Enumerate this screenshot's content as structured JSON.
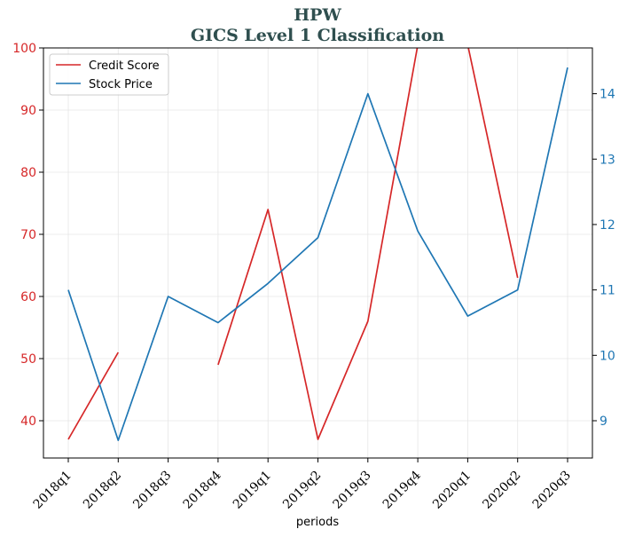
{
  "chart_data": {
    "type": "line",
    "title": "HPW",
    "subtitle": "GICS Level 1 Classification",
    "xlabel": "periods",
    "ylabel_left": "",
    "ylabel_right": "",
    "categories": [
      "2018q1",
      "2018q2",
      "2018q3",
      "2018q4",
      "2019q1",
      "2019q2",
      "2019q3",
      "2019q4",
      "2020q1",
      "2020q2",
      "2020q3"
    ],
    "left_axis": {
      "ylim": [
        34,
        100
      ],
      "ticks": [
        40,
        50,
        60,
        70,
        80,
        90,
        100
      ],
      "color": "#d62728"
    },
    "right_axis": {
      "ylim": [
        8.43,
        14.7
      ],
      "ticks": [
        9,
        10,
        11,
        12,
        13,
        14
      ],
      "color": "#1f77b4"
    },
    "grid": true,
    "legend_position": "top-left",
    "series": [
      {
        "name": "Credit Score",
        "axis": "left",
        "color": "#d62728",
        "values": [
          37,
          51,
          null,
          49,
          74,
          37,
          56,
          100.5,
          100.5,
          63,
          null
        ]
      },
      {
        "name": "Stock Price",
        "axis": "right",
        "color": "#1f77b4",
        "values": [
          11.0,
          8.7,
          10.9,
          10.5,
          11.1,
          11.8,
          14.0,
          11.9,
          10.6,
          11.0,
          14.4
        ]
      }
    ]
  }
}
